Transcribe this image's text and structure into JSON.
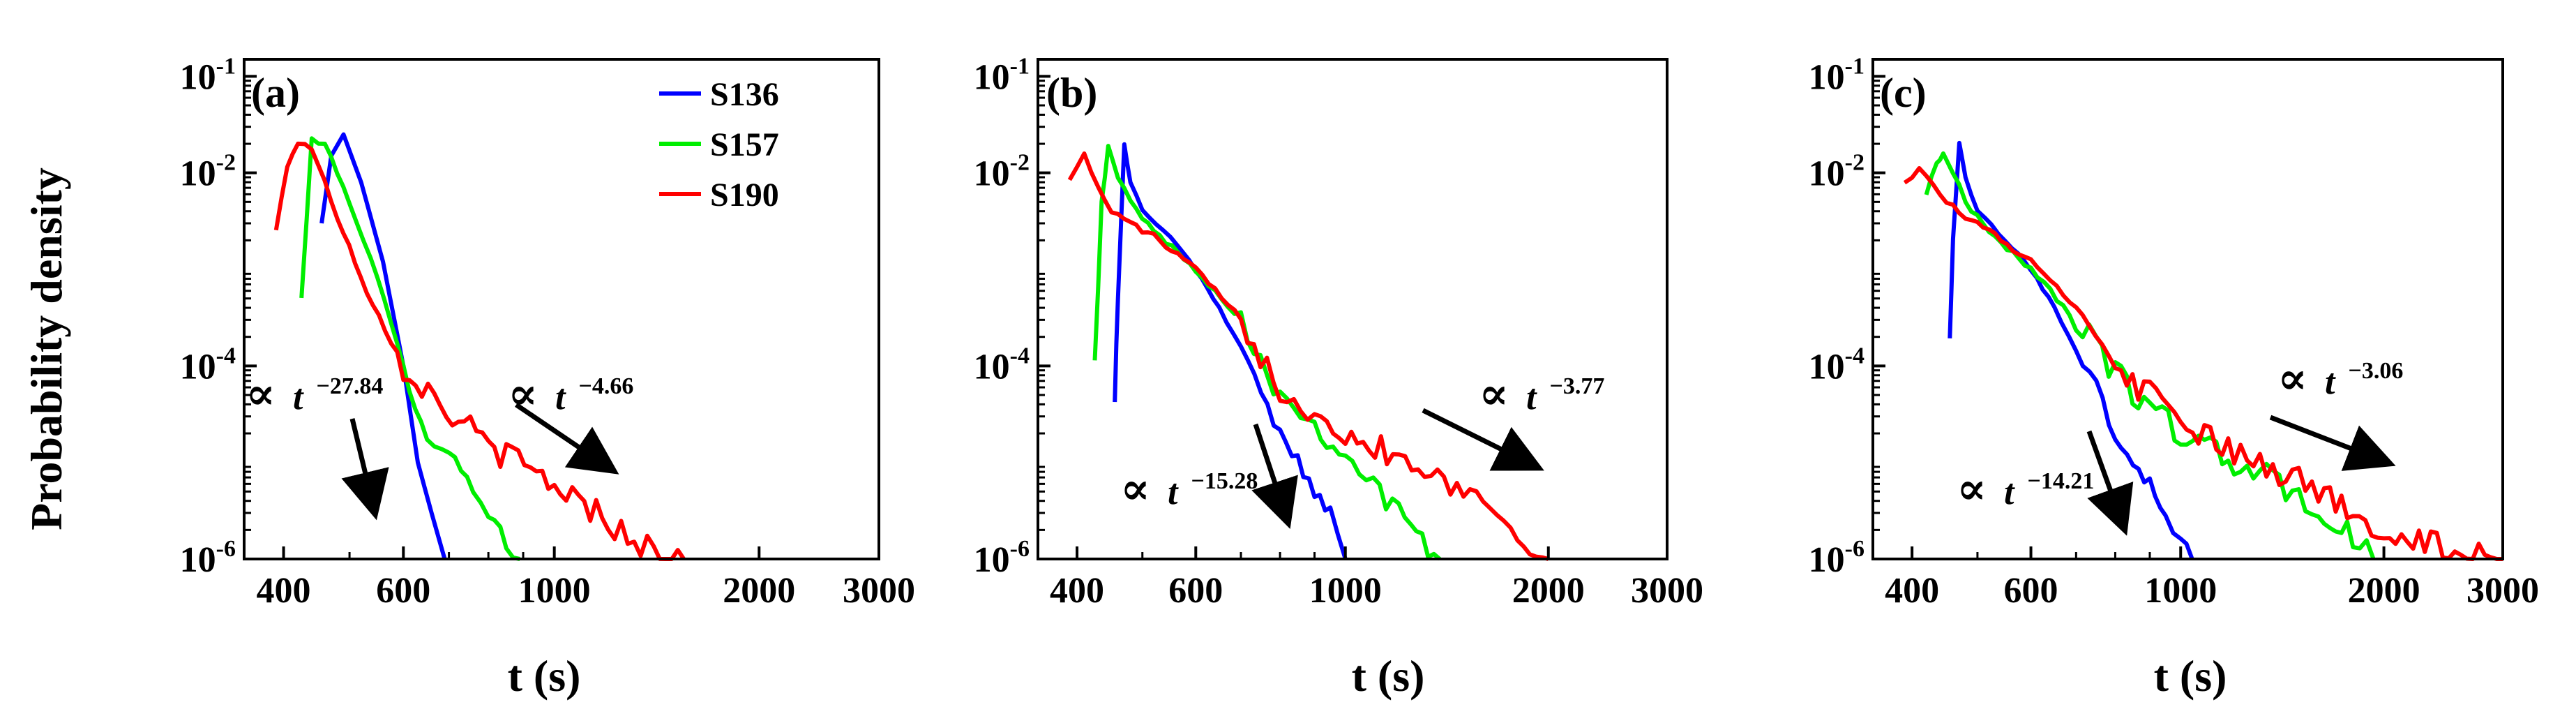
{
  "figure": {
    "ylabel": "Probability density",
    "xlabel": "t (s)"
  },
  "chart_data": [
    {
      "type": "line",
      "panel_label": "(a)",
      "xscale": "log",
      "yscale": "log",
      "xlim": [
        350,
        3000
      ],
      "ylim": [
        1e-06,
        0.15
      ],
      "xticks": [
        400,
        600,
        1000,
        2000,
        3000
      ],
      "xtick_labels": [
        "400",
        "600",
        "1000",
        "2000",
        "3000"
      ],
      "yticks": [
        1e-06,
        0.0001,
        0.01,
        0.1
      ],
      "ytick_labels": [
        {
          "base": "10",
          "exp": "-6"
        },
        {
          "base": "10",
          "exp": "-4"
        },
        {
          "base": "10",
          "exp": "-2"
        },
        {
          "base": "10",
          "exp": "-1"
        }
      ],
      "legend": {
        "position": "top-right",
        "entries": [
          "S136",
          "S157",
          "S190"
        ]
      },
      "annotations": [
        {
          "prefix": "∝",
          "var": "t",
          "exponent": "−27.84",
          "position": "left"
        },
        {
          "prefix": "∝",
          "var": "t",
          "exponent": "−4.66",
          "position": "right"
        }
      ],
      "series": [
        {
          "name": "S136",
          "color": "#0000ff",
          "noise": 0,
          "x": [
            455,
            470,
            490,
            520,
            560,
            600,
            630,
            660,
            690
          ],
          "y": [
            0.003,
            0.015,
            0.025,
            0.008,
            0.0012,
            0.0001,
            1e-05,
            3e-06,
            1e-06
          ]
        },
        {
          "name": "S157",
          "color": "#00ee00",
          "noise": 0.2,
          "x": [
            425,
            440,
            460,
            500,
            550,
            600,
            650,
            700,
            760,
            800,
            850,
            890
          ],
          "y": [
            0.0005,
            0.022,
            0.02,
            0.005,
            0.0008,
            0.0001,
            2e-05,
            1.2e-05,
            6e-06,
            3e-06,
            1.4e-06,
            1e-06
          ]
        },
        {
          "name": "S190",
          "color": "#ff0000",
          "noise": 0.3,
          "x": [
            390,
            405,
            420,
            440,
            480,
            530,
            600,
            680,
            800,
            1000,
            1200,
            1400,
            1550
          ],
          "y": [
            0.0025,
            0.012,
            0.021,
            0.018,
            0.0035,
            0.0006,
            0.0001,
            4e-05,
            1.5e-05,
            6e-06,
            2.5e-06,
            1.2e-06,
            1e-06
          ]
        }
      ]
    },
    {
      "type": "line",
      "panel_label": "(b)",
      "xscale": "log",
      "yscale": "log",
      "xlim": [
        350,
        3000
      ],
      "ylim": [
        1e-06,
        0.15
      ],
      "xticks": [
        400,
        600,
        1000,
        2000,
        3000
      ],
      "xtick_labels": [
        "400",
        "600",
        "1000",
        "2000",
        "3000"
      ],
      "yticks": [
        1e-06,
        0.0001,
        0.01,
        0.1
      ],
      "ytick_labels": [
        {
          "base": "10",
          "exp": "-6"
        },
        {
          "base": "10",
          "exp": "-4"
        },
        {
          "base": "10",
          "exp": "-2"
        },
        {
          "base": "10",
          "exp": "-1"
        }
      ],
      "annotations": [
        {
          "prefix": "∝",
          "var": "t",
          "exponent": "−15.28",
          "position": "lower-middle"
        },
        {
          "prefix": "∝",
          "var": "t",
          "exponent": "−3.77",
          "position": "right"
        }
      ],
      "series": [
        {
          "name": "S136",
          "color": "#0000ff",
          "noise": 0.15,
          "x": [
            455,
            460,
            470,
            480,
            500,
            550,
            600,
            650,
            700,
            750,
            800,
            850,
            900,
            950,
            1000
          ],
          "y": [
            5e-05,
            0.0005,
            0.02,
            0.008,
            0.004,
            0.0022,
            0.001,
            0.0004,
            0.00015,
            5e-05,
            2e-05,
            1e-05,
            5e-06,
            3e-06,
            1e-06
          ]
        },
        {
          "name": "S157",
          "color": "#00ee00",
          "noise": 0.25,
          "x": [
            425,
            435,
            445,
            460,
            480,
            520,
            600,
            700,
            800,
            900,
            1000,
            1100,
            1200,
            1300,
            1380
          ],
          "y": [
            0.00015,
            0.005,
            0.018,
            0.009,
            0.005,
            0.0025,
            0.001,
            0.0003,
            5e-05,
            2.5e-05,
            1.2e-05,
            6e-06,
            3e-06,
            1.5e-06,
            1e-06
          ]
        },
        {
          "name": "S190",
          "color": "#ff0000",
          "noise": 0.3,
          "x": [
            390,
            410,
            430,
            450,
            480,
            520,
            600,
            700,
            800,
            900,
            1000,
            1200,
            1400,
            1600,
            1800,
            2000
          ],
          "y": [
            0.009,
            0.015,
            0.007,
            0.004,
            0.003,
            0.0022,
            0.001,
            0.0003,
            6e-05,
            3.5e-05,
            2e-05,
            1.2e-05,
            7e-06,
            4e-06,
            2e-06,
            1e-06
          ]
        }
      ]
    },
    {
      "type": "line",
      "panel_label": "(c)",
      "xscale": "log",
      "yscale": "log",
      "xlim": [
        350,
        3000
      ],
      "ylim": [
        1e-06,
        0.15
      ],
      "xticks": [
        400,
        600,
        1000,
        2000,
        3000
      ],
      "xtick_labels": [
        "400",
        "600",
        "1000",
        "2000",
        "3000"
      ],
      "yticks": [
        1e-06,
        0.0001,
        0.01,
        0.1
      ],
      "ytick_labels": [
        {
          "base": "10",
          "exp": "-6"
        },
        {
          "base": "10",
          "exp": "-4"
        },
        {
          "base": "10",
          "exp": "-2"
        },
        {
          "base": "10",
          "exp": "-1"
        }
      ],
      "annotations": [
        {
          "prefix": "∝",
          "var": "t",
          "exponent": "−14.21",
          "position": "lower-middle"
        },
        {
          "prefix": "∝",
          "var": "t",
          "exponent": "−3.06",
          "position": "right"
        }
      ],
      "series": [
        {
          "name": "S136",
          "color": "#0000ff",
          "noise": 0.15,
          "x": [
            455,
            460,
            470,
            480,
            500,
            550,
            600,
            650,
            700,
            750,
            800,
            850,
            900,
            950,
            1000,
            1040
          ],
          "y": [
            0.0002,
            0.002,
            0.02,
            0.009,
            0.004,
            0.002,
            0.001,
            0.0004,
            0.00015,
            6e-05,
            2e-05,
            1e-05,
            6e-06,
            3e-06,
            1.5e-06,
            1e-06
          ]
        },
        {
          "name": "S157",
          "color": "#00ee00",
          "noise": 0.3,
          "x": [
            420,
            435,
            445,
            460,
            480,
            520,
            600,
            700,
            800,
            900,
            1000,
            1200,
            1400,
            1600,
            1800,
            1930
          ],
          "y": [
            0.006,
            0.013,
            0.016,
            0.01,
            0.005,
            0.0025,
            0.001,
            0.0003,
            8e-05,
            4e-05,
            2e-05,
            1e-05,
            6e-06,
            3e-06,
            1.7e-06,
            1e-06
          ]
        },
        {
          "name": "S190",
          "color": "#ff0000",
          "noise": 0.3,
          "x": [
            390,
            410,
            430,
            450,
            480,
            520,
            600,
            700,
            800,
            900,
            1000,
            1200,
            1400,
            1600,
            1800,
            2000,
            2300,
            2600,
            3000
          ],
          "y": [
            0.008,
            0.011,
            0.008,
            0.005,
            0.0035,
            0.0025,
            0.0012,
            0.0004,
            0.0001,
            5e-05,
            2.5e-05,
            1.2e-05,
            8e-06,
            5e-06,
            3e-06,
            2e-06,
            1.5e-06,
            1.2e-06,
            1e-06
          ]
        }
      ]
    }
  ]
}
